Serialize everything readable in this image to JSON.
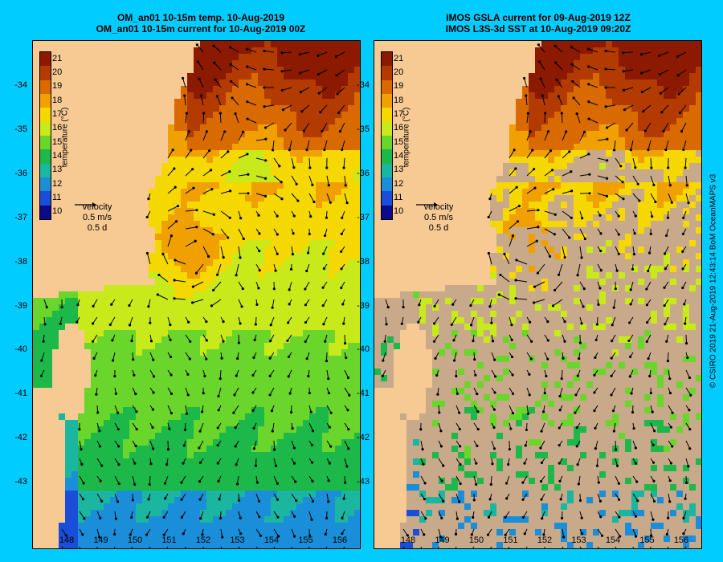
{
  "left_panel": {
    "title_line1": "OM_an01 10-15m temp. 10-Aug-2019",
    "title_line2": "OM_an01 10-15m current for 10-Aug-2019 00Z"
  },
  "right_panel": {
    "title_line1": "IMOS GSLA current for 09-Aug-2019 12Z",
    "title_line2": "IMOS L3S-3d SST at 10-Aug-2019 09:20Z"
  },
  "y_axis_labels": [
    "-34",
    "-35",
    "-36",
    "-37",
    "-38",
    "-39",
    "-40",
    "-41",
    "-42",
    "-43"
  ],
  "x_axis_labels": [
    "148",
    "149",
    "150",
    "151",
    "152",
    "153",
    "154",
    "155",
    "156"
  ],
  "colorbar": {
    "title": "temperature (°C)",
    "labels": [
      "21",
      "20",
      "19",
      "18",
      "17",
      "16",
      "15",
      "14",
      "13",
      "12",
      "11",
      "10"
    ],
    "colors": [
      "#8b1a00",
      "#b33a00",
      "#d96a00",
      "#f0a000",
      "#f5d800",
      "#c8ea1a",
      "#6ad52a",
      "#1cb84a",
      "#1ab6a0",
      "#1a8ed8",
      "#1a4ed8",
      "#0a0a8a"
    ]
  },
  "velocity_legend": {
    "label": "velocity",
    "speed": "0.5 m/s",
    "duration": "0.5 d"
  },
  "credit": "© CSIRO 2019   21-Aug-2019 12:43:14 BoM OceanMAPS v3",
  "colors": {
    "background": "#00ccff",
    "land": "#f7c993",
    "no_data": "#c8aa8a"
  }
}
